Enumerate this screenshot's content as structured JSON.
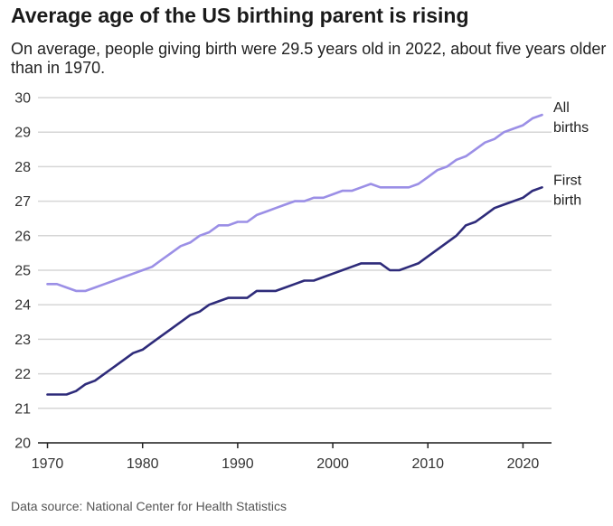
{
  "title": "Average age of the US birthing parent is rising",
  "subtitle": "On average, people giving birth were 29.5 years old in 2022, about five years older than in 1970.",
  "source": "Data source: National Center for Health Statistics",
  "chart_data": {
    "type": "line",
    "title": "Average age of the US birthing parent is rising",
    "subtitle": "On average, people giving birth were 29.5 years old in 2022, about five years older than in 1970.",
    "xlabel": "",
    "ylabel": "",
    "xlim": [
      1969,
      2023
    ],
    "ylim": [
      20,
      30
    ],
    "x_ticks": [
      1970,
      1980,
      1990,
      2000,
      2010,
      2020
    ],
    "y_ticks": [
      20,
      21,
      22,
      23,
      24,
      25,
      26,
      27,
      28,
      29,
      30
    ],
    "grid": "horizontal",
    "legend": "direct labels at line ends (right)",
    "x": [
      1970,
      1971,
      1972,
      1973,
      1974,
      1975,
      1976,
      1977,
      1978,
      1979,
      1980,
      1981,
      1982,
      1983,
      1984,
      1985,
      1986,
      1987,
      1988,
      1989,
      1990,
      1991,
      1992,
      1993,
      1994,
      1995,
      1996,
      1997,
      1998,
      1999,
      2000,
      2001,
      2002,
      2003,
      2004,
      2005,
      2006,
      2007,
      2008,
      2009,
      2010,
      2011,
      2012,
      2013,
      2014,
      2015,
      2016,
      2017,
      2018,
      2019,
      2020,
      2021,
      2022
    ],
    "series": [
      {
        "name": "All births",
        "label_lines": [
          "All",
          "births"
        ],
        "color": "#9b8fe6",
        "values": [
          24.6,
          24.6,
          24.5,
          24.4,
          24.4,
          24.5,
          24.6,
          24.7,
          24.8,
          24.9,
          25.0,
          25.1,
          25.3,
          25.5,
          25.7,
          25.8,
          26.0,
          26.1,
          26.3,
          26.3,
          26.4,
          26.4,
          26.6,
          26.7,
          26.8,
          26.9,
          27.0,
          27.0,
          27.1,
          27.1,
          27.2,
          27.3,
          27.3,
          27.4,
          27.5,
          27.4,
          27.4,
          27.4,
          27.4,
          27.5,
          27.7,
          27.9,
          28.0,
          28.2,
          28.3,
          28.5,
          28.7,
          28.8,
          29.0,
          29.1,
          29.2,
          29.4,
          29.5
        ]
      },
      {
        "name": "First birth",
        "label_lines": [
          "First",
          "birth"
        ],
        "color": "#2e2b7a",
        "values": [
          21.4,
          21.4,
          21.4,
          21.5,
          21.7,
          21.8,
          22.0,
          22.2,
          22.4,
          22.6,
          22.7,
          22.9,
          23.1,
          23.3,
          23.5,
          23.7,
          23.8,
          24.0,
          24.1,
          24.2,
          24.2,
          24.2,
          24.4,
          24.4,
          24.4,
          24.5,
          24.6,
          24.7,
          24.7,
          24.8,
          24.9,
          25.0,
          25.1,
          25.2,
          25.2,
          25.2,
          25.0,
          25.0,
          25.1,
          25.2,
          25.4,
          25.6,
          25.8,
          26.0,
          26.3,
          26.4,
          26.6,
          26.8,
          26.9,
          27.0,
          27.1,
          27.3,
          27.4
        ]
      }
    ]
  }
}
